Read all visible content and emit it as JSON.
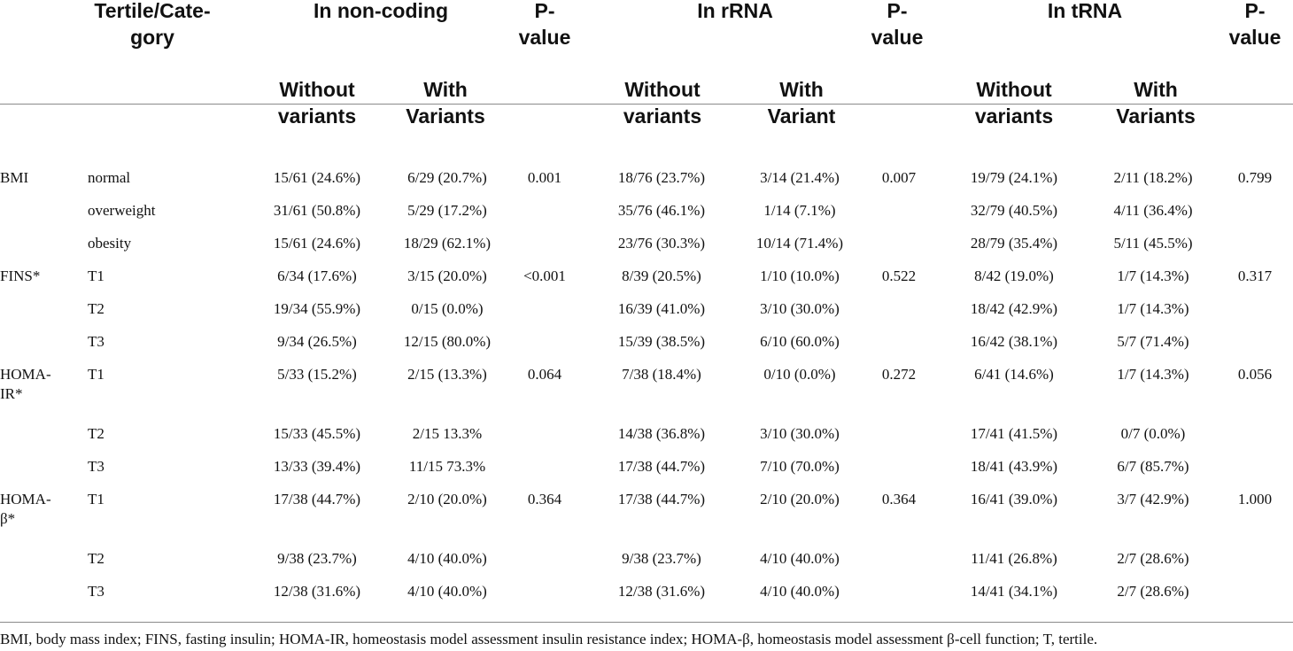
{
  "header": {
    "tertile": "Tertile/Cate-\ngory",
    "noncoding": "In non-coding",
    "rrna": "In rRNA",
    "trna": "In tRNA",
    "pvalue": "P-\nvalue",
    "nc_without": "Without\nvariants",
    "nc_with": "With\nVariants",
    "r_without": "Without\nvariants",
    "r_with": "With\nVariant",
    "t_without": "Without\nvariants",
    "t_with": "With\nVariants"
  },
  "rows": [
    {
      "variable": "BMI",
      "category": "normal",
      "nc_without": "15/61 (24.6%)",
      "nc_with": "6/29 (20.7%)",
      "nc_p": "0.001",
      "r_without": "18/76 (23.7%)",
      "r_with": "3/14 (21.4%)",
      "r_p": "0.007",
      "t_without": "19/79 (24.1%)",
      "t_with": "2/11 (18.2%)",
      "t_p": "0.799"
    },
    {
      "variable": "",
      "category": "overweight",
      "nc_without": "31/61 (50.8%)",
      "nc_with": "5/29 (17.2%)",
      "nc_p": "",
      "r_without": "35/76 (46.1%)",
      "r_with": "1/14 (7.1%)",
      "r_p": "",
      "t_without": "32/79 (40.5%)",
      "t_with": "4/11 (36.4%)",
      "t_p": ""
    },
    {
      "variable": "",
      "category": "obesity",
      "nc_without": "15/61 (24.6%)",
      "nc_with": "18/29 (62.1%)",
      "nc_p": "",
      "r_without": "23/76 (30.3%)",
      "r_with": "10/14 (71.4%)",
      "r_p": "",
      "t_without": "28/79 (35.4%)",
      "t_with": "5/11 (45.5%)",
      "t_p": ""
    },
    {
      "variable": "FINS*",
      "category": "T1",
      "nc_without": "6/34 (17.6%)",
      "nc_with": "3/15 (20.0%)",
      "nc_p": "<0.001",
      "r_without": "8/39 (20.5%)",
      "r_with": "1/10 (10.0%)",
      "r_p": "0.522",
      "t_without": "8/42 (19.0%)",
      "t_with": "1/7 (14.3%)",
      "t_p": "0.317"
    },
    {
      "variable": "",
      "category": "T2",
      "nc_without": "19/34 (55.9%)",
      "nc_with": "0/15 (0.0%)",
      "nc_p": "",
      "r_without": "16/39 (41.0%)",
      "r_with": "3/10 (30.0%)",
      "r_p": "",
      "t_without": "18/42 (42.9%)",
      "t_with": "1/7 (14.3%)",
      "t_p": ""
    },
    {
      "variable": "",
      "category": "T3",
      "nc_without": "9/34 (26.5%)",
      "nc_with": "12/15 (80.0%)",
      "nc_p": "",
      "r_without": "15/39 (38.5%)",
      "r_with": "6/10 (60.0%)",
      "r_p": "",
      "t_without": "16/42 (38.1%)",
      "t_with": "5/7 (71.4%)",
      "t_p": ""
    },
    {
      "variable": "HOMA-\nIR*",
      "category": "T1",
      "nc_without": "5/33 (15.2%)",
      "nc_with": "2/15 (13.3%)",
      "nc_p": "0.064",
      "r_without": "7/38 (18.4%)",
      "r_with": "0/10 (0.0%)",
      "r_p": "0.272",
      "t_without": "6/41 (14.6%)",
      "t_with": "1/7 (14.3%)",
      "t_p": "0.056"
    },
    {
      "variable": "",
      "category": "T2",
      "nc_without": "15/33 (45.5%)",
      "nc_with": "2/15 13.3%",
      "nc_p": "",
      "r_without": "14/38 (36.8%)",
      "r_with": "3/10 (30.0%)",
      "r_p": "",
      "t_without": "17/41 (41.5%)",
      "t_with": "0/7 (0.0%)",
      "t_p": ""
    },
    {
      "variable": "",
      "category": "T3",
      "nc_without": "13/33 (39.4%)",
      "nc_with": "11/15 73.3%",
      "nc_p": "",
      "r_without": "17/38 (44.7%)",
      "r_with": "7/10 (70.0%)",
      "r_p": "",
      "t_without": "18/41 (43.9%)",
      "t_with": "6/7 (85.7%)",
      "t_p": ""
    },
    {
      "variable": "HOMA-\nβ*",
      "category": "T1",
      "nc_without": "17/38 (44.7%)",
      "nc_with": "2/10 (20.0%)",
      "nc_p": "0.364",
      "r_without": "17/38 (44.7%)",
      "r_with": "2/10 (20.0%)",
      "r_p": "0.364",
      "t_without": "16/41 (39.0%)",
      "t_with": "3/7 (42.9%)",
      "t_p": "1.000"
    },
    {
      "variable": "",
      "category": "T2",
      "nc_without": "9/38 (23.7%)",
      "nc_with": "4/10 (40.0%)",
      "nc_p": "",
      "r_without": "9/38 (23.7%)",
      "r_with": "4/10 (40.0%)",
      "r_p": "",
      "t_without": "11/41 (26.8%)",
      "t_with": "2/7 (28.6%)",
      "t_p": ""
    },
    {
      "variable": "",
      "category": "T3",
      "nc_without": "12/38 (31.6%)",
      "nc_with": "4/10 (40.0%)",
      "nc_p": "",
      "r_without": "12/38 (31.6%)",
      "r_with": "4/10 (40.0%)",
      "r_p": "",
      "t_without": "14/41 (34.1%)",
      "t_with": "2/7 (28.6%)",
      "t_p": ""
    }
  ],
  "footnote": "BMI, body mass index; FINS, fasting insulin; HOMA-IR, homeostasis model assessment insulin resistance index; HOMA-β, homeostasis model assessment β-cell function; T, tertile."
}
